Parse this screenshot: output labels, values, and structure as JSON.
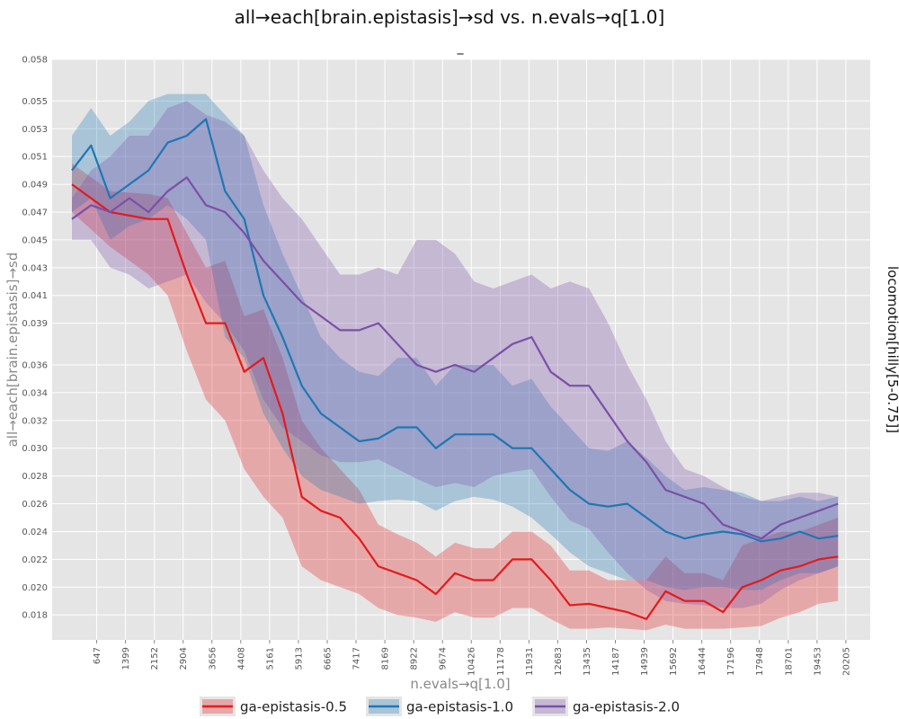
{
  "chart_data": {
    "type": "line",
    "title": "all→each[brain.epistasis]→sd vs. n.evals→q[1.0]",
    "subtitle": "_",
    "xlabel": "n.evals→q[1.0]",
    "ylabel": "all→each[brain.epistasis]→sd",
    "facet_label": "locomotion[hilly[5-0.75]]",
    "xlim": [
      0,
      20700
    ],
    "ylim": [
      0.0162,
      0.058
    ],
    "x_ticks": [
      647,
      1399,
      2152,
      2904,
      3656,
      4408,
      5161,
      5913,
      6665,
      7417,
      8169,
      8922,
      9674,
      10426,
      11178,
      11931,
      12683,
      13435,
      14187,
      14939,
      15692,
      16444,
      17196,
      17948,
      18701,
      19453,
      20205
    ],
    "y_ticks": [
      "0.018",
      "0.020",
      "0.022",
      "0.024",
      "0.026",
      "0.028",
      "0.030",
      "0.032",
      "0.034",
      "0.036",
      "0.039",
      "0.041",
      "0.043",
      "0.045",
      "0.047",
      "0.049",
      "0.051",
      "0.053",
      "0.055",
      "0.058"
    ],
    "grid": true,
    "legend_position": "bottom",
    "series": [
      {
        "name": "ga-epistasis-0.5",
        "color": "#e41a1c",
        "x": [
          0,
          1000,
          2000,
          2500,
          3000,
          3500,
          4000,
          4500,
          5000,
          5500,
          6000,
          6500,
          7000,
          7500,
          8000,
          8500,
          9000,
          9500,
          10000,
          10500,
          11000,
          11500,
          12000,
          12500,
          13000,
          13500,
          14000,
          14500,
          15000,
          15500,
          16000,
          16500,
          17000,
          17500,
          18000,
          18500,
          19000,
          19500,
          20000
        ],
        "y": [
          0.049,
          0.047,
          0.0465,
          0.0465,
          0.0425,
          0.039,
          0.039,
          0.0355,
          0.0365,
          0.0325,
          0.0265,
          0.0255,
          0.025,
          0.0235,
          0.0215,
          0.021,
          0.0205,
          0.0195,
          0.021,
          0.0205,
          0.0205,
          0.022,
          0.022,
          0.0205,
          0.0187,
          0.0188,
          0.0185,
          0.0182,
          0.0177,
          0.0197,
          0.019,
          0.019,
          0.0182,
          0.02,
          0.0205,
          0.0212,
          0.0215,
          0.022,
          0.0222
        ],
        "lower": [
          0.047,
          0.0445,
          0.0425,
          0.041,
          0.037,
          0.0335,
          0.032,
          0.0285,
          0.0265,
          0.025,
          0.0215,
          0.0205,
          0.02,
          0.0195,
          0.0185,
          0.018,
          0.0178,
          0.0175,
          0.0182,
          0.0178,
          0.0178,
          0.0185,
          0.0185,
          0.0177,
          0.017,
          0.017,
          0.0171,
          0.017,
          0.0169,
          0.0173,
          0.017,
          0.017,
          0.017,
          0.0171,
          0.0172,
          0.0178,
          0.0182,
          0.0188,
          0.019
        ],
        "upper": [
          0.0505,
          0.0485,
          0.0483,
          0.048,
          0.0455,
          0.043,
          0.0435,
          0.0395,
          0.04,
          0.0365,
          0.032,
          0.03,
          0.0285,
          0.027,
          0.0245,
          0.0238,
          0.0232,
          0.0222,
          0.0232,
          0.0228,
          0.0228,
          0.024,
          0.024,
          0.023,
          0.0212,
          0.0212,
          0.0205,
          0.0205,
          0.0205,
          0.0222,
          0.021,
          0.021,
          0.0205,
          0.023,
          0.0235,
          0.024,
          0.024,
          0.0245,
          0.025
        ]
      },
      {
        "name": "ga-epistasis-1.0",
        "color": "#1f77b4",
        "x": [
          0,
          500,
          1000,
          1500,
          2000,
          2500,
          3000,
          3500,
          4000,
          4500,
          5000,
          5500,
          6000,
          6500,
          7000,
          7500,
          8000,
          8500,
          9000,
          9500,
          10000,
          10500,
          11000,
          11500,
          12000,
          12500,
          13000,
          13500,
          14000,
          14500,
          15000,
          15500,
          16000,
          16500,
          17000,
          17500,
          18000,
          18500,
          19000,
          19500,
          20000
        ],
        "y": [
          0.05,
          0.0518,
          0.048,
          0.049,
          0.05,
          0.052,
          0.0525,
          0.0537,
          0.0485,
          0.0465,
          0.041,
          0.038,
          0.0345,
          0.0325,
          0.0315,
          0.0305,
          0.0307,
          0.0315,
          0.0315,
          0.03,
          0.031,
          0.031,
          0.031,
          0.03,
          0.03,
          0.0285,
          0.027,
          0.026,
          0.0258,
          0.026,
          0.025,
          0.024,
          0.0235,
          0.0238,
          0.024,
          0.0238,
          0.0233,
          0.0235,
          0.024,
          0.0235,
          0.0237
        ],
        "lower": [
          0.047,
          0.048,
          0.045,
          0.046,
          0.0465,
          0.0475,
          0.0465,
          0.045,
          0.038,
          0.0365,
          0.0325,
          0.03,
          0.028,
          0.027,
          0.0265,
          0.026,
          0.0262,
          0.0263,
          0.0262,
          0.0255,
          0.0262,
          0.0265,
          0.0263,
          0.0258,
          0.025,
          0.0238,
          0.0225,
          0.0215,
          0.021,
          0.0205,
          0.0205,
          0.02,
          0.0198,
          0.02,
          0.02,
          0.0198,
          0.0198,
          0.0205,
          0.021,
          0.021,
          0.0215
        ],
        "upper": [
          0.0525,
          0.0545,
          0.0525,
          0.0535,
          0.055,
          0.0555,
          0.0555,
          0.0555,
          0.054,
          0.0525,
          0.0475,
          0.044,
          0.041,
          0.038,
          0.0365,
          0.0355,
          0.0352,
          0.0365,
          0.0365,
          0.0345,
          0.036,
          0.036,
          0.036,
          0.0345,
          0.035,
          0.033,
          0.0315,
          0.03,
          0.0298,
          0.0305,
          0.0293,
          0.028,
          0.027,
          0.0272,
          0.027,
          0.0268,
          0.0262,
          0.0262,
          0.0265,
          0.0262,
          0.0265
        ]
      },
      {
        "name": "ga-epistasis-2.0",
        "color": "#7b4fa8",
        "x": [
          0,
          500,
          1000,
          1500,
          2000,
          2500,
          3000,
          3500,
          4000,
          4500,
          5000,
          5500,
          6000,
          6500,
          7000,
          7500,
          8000,
          8500,
          9000,
          9500,
          10000,
          10500,
          11000,
          11500,
          12000,
          12500,
          13000,
          13500,
          14000,
          14500,
          15000,
          15500,
          16000,
          16500,
          17000,
          17500,
          18000,
          18500,
          19000,
          19500,
          20000
        ],
        "y": [
          0.0465,
          0.0475,
          0.047,
          0.048,
          0.047,
          0.0485,
          0.0495,
          0.0475,
          0.047,
          0.0455,
          0.0435,
          0.042,
          0.0405,
          0.0395,
          0.0385,
          0.0385,
          0.039,
          0.0375,
          0.036,
          0.0355,
          0.036,
          0.0355,
          0.0365,
          0.0375,
          0.038,
          0.0355,
          0.0345,
          0.0345,
          0.0325,
          0.0305,
          0.029,
          0.027,
          0.0265,
          0.026,
          0.0245,
          0.024,
          0.0235,
          0.0245,
          0.025,
          0.0255,
          0.026
        ],
        "lower": [
          0.045,
          0.045,
          0.043,
          0.0425,
          0.0415,
          0.042,
          0.0425,
          0.0405,
          0.039,
          0.037,
          0.0335,
          0.0315,
          0.0305,
          0.0295,
          0.029,
          0.029,
          0.0292,
          0.0285,
          0.0278,
          0.0272,
          0.0275,
          0.0272,
          0.028,
          0.0283,
          0.0285,
          0.0265,
          0.0248,
          0.0242,
          0.0225,
          0.021,
          0.0198,
          0.019,
          0.0188,
          0.0187,
          0.0185,
          0.0185,
          0.0188,
          0.0198,
          0.0205,
          0.021,
          0.0215
        ],
        "upper": [
          0.048,
          0.05,
          0.051,
          0.0525,
          0.0525,
          0.0545,
          0.055,
          0.054,
          0.0535,
          0.0525,
          0.05,
          0.048,
          0.0465,
          0.0445,
          0.0425,
          0.0425,
          0.043,
          0.0425,
          0.045,
          0.045,
          0.044,
          0.042,
          0.0415,
          0.042,
          0.0425,
          0.0415,
          0.042,
          0.0415,
          0.039,
          0.036,
          0.0335,
          0.0305,
          0.0285,
          0.028,
          0.0272,
          0.0265,
          0.0262,
          0.0265,
          0.0268,
          0.0268,
          0.0265
        ]
      }
    ]
  }
}
